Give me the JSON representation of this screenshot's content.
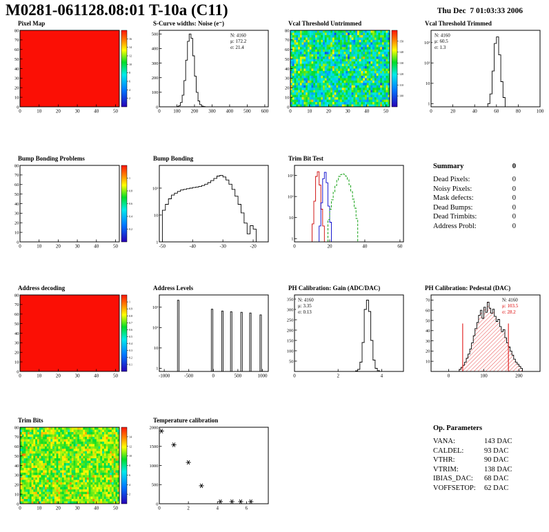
{
  "page": {
    "title": "M0281-061128.08:01 T-10a (C11)",
    "datetime": "Thu Dec  7 01:03:33 2006"
  },
  "summary": {
    "title": "Summary",
    "total": "0",
    "rows": [
      {
        "label": "Dead Pixels:",
        "value": "0"
      },
      {
        "label": "Noisy Pixels:",
        "value": "0"
      },
      {
        "label": "Mask defects:",
        "value": "0"
      },
      {
        "label": "Dead Bumps:",
        "value": "0"
      },
      {
        "label": "Dead Trimbits:",
        "value": "0"
      },
      {
        "label": "Address Probl:",
        "value": "0"
      }
    ]
  },
  "op_parameters": {
    "title": "Op. Parameters",
    "rows": [
      {
        "label": "VANA:",
        "value": "143 DAC"
      },
      {
        "label": "CALDEL:",
        "value": "93 DAC"
      },
      {
        "label": "VTHR:",
        "value": "90 DAC"
      },
      {
        "label": "VTRIM:",
        "value": "138 DAC"
      },
      {
        "label": "IBIAS_DAC:",
        "value": "68 DAC"
      },
      {
        "label": "VOFFSETOP:",
        "value": "62 DAC"
      }
    ]
  },
  "colors": {
    "solid_map_red": "#fb0f05",
    "stats_red": "#dd0000",
    "hist_red": "#cc0000",
    "hist_blue": "#0000cc",
    "hist_green": "#009900"
  },
  "chart_data": [
    {
      "id": "pixel-map",
      "title": "Pixel Map",
      "type": "map2d",
      "fill": "solid",
      "color": "#fb0f05",
      "xlim": [
        0,
        52
      ],
      "xticks": [
        0,
        10,
        20,
        30,
        40,
        50
      ],
      "ylim": [
        0,
        80
      ],
      "yticks": [
        {
          "v": 0,
          "label": "0"
        },
        {
          "v": 10,
          "label": "10"
        },
        {
          "v": 20,
          "label": "20"
        },
        {
          "v": 30,
          "label": "30"
        },
        {
          "v": 40,
          "label": "40"
        },
        {
          "v": 50,
          "label": "50"
        },
        {
          "v": 60,
          "label": "60"
        },
        {
          "v": 70,
          "label": "70"
        },
        {
          "v": 80,
          "label": "80"
        }
      ],
      "colorbar": {
        "labels": [
          "2",
          "4",
          "6",
          "8",
          "10",
          "12",
          "14",
          "16"
        ]
      }
    },
    {
      "id": "scurve-noise",
      "title": "S-Curve widths: Noise (e⁻)",
      "type": "hist",
      "xlim": [
        0,
        620
      ],
      "xticks": [
        0,
        100,
        200,
        300,
        400,
        500,
        600
      ],
      "ylog": false,
      "ylim": [
        0,
        525
      ],
      "yticks": [
        {
          "v": 0,
          "label": "0"
        },
        {
          "v": 100,
          "label": "100"
        },
        {
          "v": 200,
          "label": "200"
        },
        {
          "v": 300,
          "label": "300"
        },
        {
          "v": 400,
          "label": "400"
        },
        {
          "v": 500,
          "label": "500"
        }
      ],
      "series": [
        {
          "stype": "steps",
          "color": "#000000",
          "x0": 100,
          "binw": 10,
          "values": [
            2,
            8,
            30,
            80,
            180,
            320,
            450,
            500,
            470,
            350,
            210,
            100,
            40,
            15,
            5,
            2
          ]
        }
      ],
      "stats": {
        "pos": "tr",
        "lines": [
          {
            "text": "N: 4160"
          },
          {
            "text": "μ: 172.2"
          },
          {
            "text": "σ: 21.4"
          }
        ]
      }
    },
    {
      "id": "vcal-threshold-untrimmed",
      "title": "Vcal Threshold Untrimmed",
      "type": "map2d",
      "fill": "noise",
      "noise": {
        "mean": 0.5,
        "sigma": 0.13,
        "seed": 7
      },
      "xlim": [
        0,
        52
      ],
      "xticks": [
        0,
        10,
        20,
        30,
        40,
        50
      ],
      "ylim": [
        0,
        80
      ],
      "yticks": [
        {
          "v": 0,
          "label": "0"
        },
        {
          "v": 10,
          "label": "10"
        },
        {
          "v": 20,
          "label": "20"
        },
        {
          "v": 30,
          "label": "30"
        },
        {
          "v": 40,
          "label": "40"
        },
        {
          "v": 50,
          "label": "50"
        },
        {
          "v": 60,
          "label": "60"
        },
        {
          "v": 70,
          "label": "70"
        },
        {
          "v": 80,
          "label": "80"
        }
      ],
      "colorbar": {
        "labels": [
          "100",
          "110",
          "120",
          "130",
          "140",
          "150"
        ]
      }
    },
    {
      "id": "vcal-threshold-trimmed",
      "title": "Vcal Threshold Trimmed",
      "type": "hist",
      "xlim": [
        0,
        100
      ],
      "xticks": [
        0,
        20,
        40,
        60,
        80,
        100
      ],
      "ylog": true,
      "ylim": [
        0.7,
        4000
      ],
      "yticks": [
        {
          "v": 1,
          "label": "1"
        },
        {
          "v": 10,
          "label": "10"
        },
        {
          "v": 100,
          "label": "10²"
        },
        {
          "v": 1000,
          "label": "10³"
        }
      ],
      "series": [
        {
          "stype": "steps",
          "color": "#000000",
          "x0": 52,
          "binw": 2,
          "values": [
            1,
            3,
            40,
            900,
            1900,
            250,
            12,
            2
          ]
        }
      ],
      "stats": {
        "pos": "tl",
        "lines": [
          {
            "text": "N: 4160"
          },
          {
            "text": "μ: 60.5"
          },
          {
            "text": "σ: 1.3"
          }
        ]
      }
    },
    {
      "id": "bump-bonding-problems",
      "title": "Bump Bonding Problems",
      "type": "map2d",
      "fill": "empty",
      "xlim": [
        0,
        52
      ],
      "xticks": [
        0,
        10,
        20,
        30,
        40,
        50
      ],
      "ylim": [
        0,
        80
      ],
      "yticks": [
        {
          "v": 0,
          "label": "0"
        },
        {
          "v": 10,
          "label": "10"
        },
        {
          "v": 20,
          "label": "20"
        },
        {
          "v": 30,
          "label": "30"
        },
        {
          "v": 40,
          "label": "40"
        },
        {
          "v": 50,
          "label": "50"
        },
        {
          "v": 60,
          "label": "60"
        },
        {
          "v": 70,
          "label": "70"
        },
        {
          "v": 80,
          "label": "80"
        }
      ],
      "colorbar": {
        "labels": [
          "0.2",
          "0.4",
          "0.6",
          "0.8",
          "1"
        ]
      }
    },
    {
      "id": "bump-bonding",
      "title": "Bump Bonding",
      "type": "hist",
      "xlim": [
        -51,
        -15
      ],
      "xticks": [
        -50,
        -40,
        -30,
        -20
      ],
      "ylog": true,
      "ylim": [
        1,
        700
      ],
      "yticks": [
        {
          "v": 1,
          "label": "1"
        },
        {
          "v": 10,
          "label": "10"
        },
        {
          "v": 100,
          "label": "10²"
        }
      ],
      "series": [
        {
          "stype": "steps",
          "color": "#000000",
          "x0": -50,
          "binw": 1,
          "values": [
            15,
            25,
            40,
            55,
            65,
            75,
            85,
            90,
            95,
            100,
            105,
            110,
            115,
            125,
            140,
            160,
            190,
            230,
            280,
            300,
            260,
            200,
            140,
            90,
            50,
            25,
            12,
            5,
            2,
            4,
            3
          ]
        }
      ]
    },
    {
      "id": "trim-bit-test",
      "title": "Trim Bit Test",
      "type": "hist",
      "xlim": [
        0,
        62
      ],
      "xticks": [
        0,
        20,
        40,
        60
      ],
      "ylog": true,
      "ylim": [
        0.7,
        3000
      ],
      "yticks": [
        {
          "v": 1,
          "label": "1"
        },
        {
          "v": 10,
          "label": "10"
        },
        {
          "v": 100,
          "label": "10²"
        },
        {
          "v": 1000,
          "label": "10³"
        }
      ],
      "series": [
        {
          "stype": "steps",
          "color": "#cc0000",
          "x0": 10,
          "binw": 1,
          "values": [
            5,
            60,
            900,
            1500,
            350,
            25,
            4
          ]
        },
        {
          "stype": "steps",
          "color": "#0000cc",
          "x0": 14,
          "binw": 1,
          "values": [
            4,
            50,
            700,
            1400,
            450,
            35,
            6
          ]
        },
        {
          "stype": "steps",
          "color": "#009900",
          "dash": true,
          "x0": 19,
          "binw": 1,
          "values": [
            8,
            25,
            70,
            160,
            330,
            600,
            900,
            1100,
            1200,
            1120,
            920,
            620,
            360,
            170,
            75,
            28,
            9
          ]
        }
      ]
    },
    {
      "id": "address-decoding",
      "title": "Address decoding",
      "type": "map2d",
      "fill": "solid",
      "color": "#fb0f05",
      "xlim": [
        0,
        52
      ],
      "xticks": [
        0,
        10,
        20,
        30,
        40,
        50
      ],
      "ylim": [
        0,
        80
      ],
      "yticks": [
        {
          "v": 0,
          "label": "0"
        },
        {
          "v": 10,
          "label": "10"
        },
        {
          "v": 20,
          "label": "20"
        },
        {
          "v": 30,
          "label": "30"
        },
        {
          "v": 40,
          "label": "40"
        },
        {
          "v": 50,
          "label": "50"
        },
        {
          "v": 60,
          "label": "60"
        },
        {
          "v": 70,
          "label": "70"
        },
        {
          "v": 80,
          "label": "80"
        }
      ],
      "colorbar": {
        "labels": [
          "0.1",
          "0.2",
          "0.3",
          "0.4",
          "0.5",
          "0.6",
          "0.7",
          "0.8",
          "0.9",
          "1"
        ]
      }
    },
    {
      "id": "address-levels",
      "title": "Address Levels",
      "type": "hist",
      "xlim": [
        -1100,
        1120
      ],
      "xticks": [
        -1000,
        -500,
        0,
        500,
        1000
      ],
      "ylog": true,
      "ylim": [
        0.7,
        4000
      ],
      "yticks": [
        {
          "v": 1,
          "label": "1"
        },
        {
          "v": 10,
          "label": "10"
        },
        {
          "v": 100,
          "label": "10²"
        },
        {
          "v": 1000,
          "label": "10³"
        }
      ],
      "series": [
        {
          "stype": "steps",
          "color": "#000000",
          "x0": -730,
          "binw": 30,
          "values": [
            2200,
            0,
            0,
            0,
            0,
            0,
            0,
            0,
            0,
            0,
            0,
            0,
            0,
            0,
            0,
            0,
            0,
            0,
            0,
            0,
            0,
            0,
            0,
            800,
            0,
            0,
            0,
            0,
            0,
            0,
            650,
            0,
            0,
            0,
            0,
            0,
            600,
            0,
            0,
            0,
            0,
            0,
            0,
            560,
            0,
            0,
            0,
            0,
            0,
            520,
            0,
            0,
            0,
            0,
            0,
            0,
            420,
            0,
            0,
            0
          ]
        }
      ]
    },
    {
      "id": "ph-calibration-gain",
      "title": "PH Calibration: Gain (ADC/DAC)",
      "type": "hist",
      "xlim": [
        0,
        5
      ],
      "xticks": [
        0,
        2,
        4
      ],
      "ylog": false,
      "ylim": [
        0,
        370
      ],
      "yticks": [
        {
          "v": 50,
          "label": "50"
        },
        {
          "v": 100,
          "label": "100"
        },
        {
          "v": 150,
          "label": "150"
        },
        {
          "v": 200,
          "label": "200"
        },
        {
          "v": 250,
          "label": "250"
        },
        {
          "v": 300,
          "label": "300"
        },
        {
          "v": 350,
          "label": "350"
        }
      ],
      "series": [
        {
          "stype": "steps",
          "color": "#000000",
          "x0": 2.8,
          "binw": 0.1,
          "values": [
            3,
            10,
            45,
            140,
            300,
            345,
            290,
            150,
            55,
            15,
            4
          ]
        }
      ],
      "stats": {
        "pos": "tl",
        "lines": [
          {
            "text": "N: 4160"
          },
          {
            "text": "μ: 3.35"
          },
          {
            "text": "σ: 0.13"
          }
        ]
      }
    },
    {
      "id": "ph-calibration-pedestal",
      "title": "PH Calibration: Pedestal (DAC)",
      "type": "hist",
      "hatch": true,
      "xlim": [
        -50,
        260
      ],
      "xticks": [
        0,
        100,
        200
      ],
      "ylog": false,
      "ylim": [
        0,
        75
      ],
      "yticks": [
        {
          "v": 10,
          "label": "10"
        },
        {
          "v": 20,
          "label": "20"
        },
        {
          "v": 30,
          "label": "30"
        },
        {
          "v": 40,
          "label": "40"
        },
        {
          "v": 50,
          "label": "50"
        },
        {
          "v": 60,
          "label": "60"
        },
        {
          "v": 70,
          "label": "70"
        }
      ],
      "series": [
        {
          "stype": "steps",
          "color": "#000000",
          "fill": "hatch",
          "x0": 30,
          "binw": 5,
          "values": [
            2,
            4,
            6,
            9,
            13,
            17,
            22,
            28,
            35,
            42,
            48,
            55,
            60,
            52,
            63,
            58,
            68,
            62,
            57,
            61,
            54,
            49,
            51,
            44,
            39,
            41,
            33,
            28,
            24,
            20,
            16,
            12,
            9,
            7,
            5,
            3
          ]
        }
      ],
      "vlines": [
        {
          "x": 40,
          "h": 47,
          "color": "#dd0000"
        },
        {
          "x": 170,
          "h": 47,
          "color": "#dd0000"
        }
      ],
      "stats": {
        "pos": "tr",
        "lines": [
          {
            "text": "N: 4160"
          },
          {
            "text": "μ: 103.5",
            "color": "#dd0000"
          },
          {
            "text": "σ: 28.2",
            "color": "#dd0000"
          }
        ]
      }
    },
    {
      "id": "trim-bits",
      "title": "Trim Bits",
      "type": "map2d",
      "fill": "noise",
      "noise": {
        "mean": 0.66,
        "sigma": 0.08,
        "seed": 13
      },
      "xlim": [
        0,
        52
      ],
      "xticks": [
        0,
        10,
        20,
        30,
        40,
        50
      ],
      "ylim": [
        0,
        80
      ],
      "yticks": [
        {
          "v": 0,
          "label": "0"
        },
        {
          "v": 10,
          "label": "10"
        },
        {
          "v": 20,
          "label": "20"
        },
        {
          "v": 30,
          "label": "30"
        },
        {
          "v": 40,
          "label": "40"
        },
        {
          "v": 50,
          "label": "50"
        },
        {
          "v": 60,
          "label": "60"
        },
        {
          "v": 70,
          "label": "70"
        },
        {
          "v": 80,
          "label": "80"
        }
      ],
      "colorbar": {
        "labels": [
          "2",
          "4",
          "6",
          "8",
          "10",
          "12",
          "14"
        ]
      }
    },
    {
      "id": "temperature-calibration",
      "title": "Temperature calibration",
      "type": "hist",
      "xlim": [
        0,
        7.5
      ],
      "xticks": [
        0,
        2,
        4,
        6
      ],
      "ylog": false,
      "ylim": [
        0,
        2000
      ],
      "yticks": [
        {
          "v": 0,
          "label": "0"
        },
        {
          "v": 500,
          "label": "500"
        },
        {
          "v": 1000,
          "label": "1000"
        },
        {
          "v": 1500,
          "label": "1500"
        },
        {
          "v": 2000,
          "label": "2000"
        }
      ],
      "series": [
        {
          "stype": "scatter",
          "color": "#000000",
          "points": [
            [
              0.15,
              1900
            ],
            [
              1.0,
              1540
            ],
            [
              2.0,
              1080
            ],
            [
              2.9,
              470
            ],
            [
              4.2,
              55
            ],
            [
              5.0,
              55
            ],
            [
              5.6,
              55
            ],
            [
              6.3,
              55
            ]
          ]
        }
      ]
    }
  ]
}
